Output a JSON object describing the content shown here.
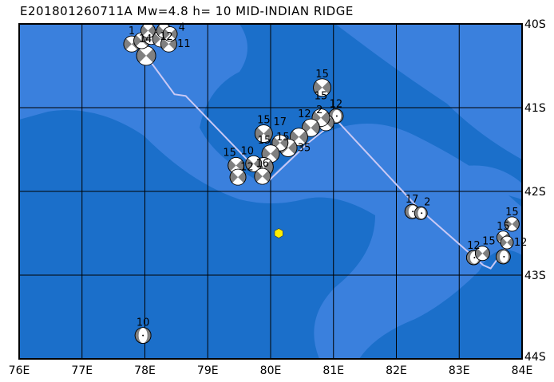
{
  "title": "E201801260711A Mw=4.8 h= 10 MID-INDIAN RIDGE",
  "map": {
    "lon_range": [
      76,
      84
    ],
    "lat_range_south": [
      40,
      44
    ],
    "lon_ticks": [
      "76E",
      "77E",
      "78E",
      "79E",
      "80E",
      "81E",
      "82E",
      "83E",
      "84E"
    ],
    "lat_ticks": [
      "40S",
      "41S",
      "42S",
      "43S",
      "44S"
    ],
    "colors": {
      "deep_ocean": "#1b6fca",
      "shallow_ocean": "#3a80dd",
      "ridge_line": "#c9c9f5",
      "compression": "#808080",
      "dilatation": "#ffffff",
      "epicenter": "#ffee00"
    },
    "epicenter": {
      "lon": 80.13,
      "lat": -42.5,
      "icon": "hexagon"
    },
    "ridge": [
      [
        78.02,
        -40.38
      ],
      [
        78.47,
        -40.84
      ],
      [
        78.65,
        -40.86
      ],
      [
        79.96,
        -41.88
      ],
      [
        80.6,
        -41.42
      ],
      [
        81.05,
        -41.15
      ],
      [
        82.35,
        -42.2
      ],
      [
        83.38,
        -42.88
      ],
      [
        83.5,
        -42.92
      ],
      [
        83.83,
        -42.58
      ]
    ],
    "events": [
      {
        "lon": 78.02,
        "lat": -40.38,
        "label": "",
        "type": "strike-slip",
        "size": 12
      },
      {
        "lon": 77.79,
        "lat": -40.24,
        "label": "1",
        "type": "strike-slip",
        "size": 10
      },
      {
        "lon": 77.95,
        "lat": -40.2,
        "label": "",
        "type": "strike-slip",
        "size": 10
      },
      {
        "lon": 78.1,
        "lat": -40.15,
        "label": "12",
        "type": "strike-slip",
        "size": 10
      },
      {
        "lon": 78.25,
        "lat": -40.18,
        "label": "14",
        "type": "strike-slip",
        "size": 10
      },
      {
        "lon": 78.38,
        "lat": -40.24,
        "label": "11",
        "type": "strike-slip",
        "size": 10
      },
      {
        "lon": 78.05,
        "lat": -40.08,
        "label": "",
        "type": "strike-slip",
        "size": 9
      },
      {
        "lon": 78.3,
        "lat": -40.08,
        "label": "4",
        "type": "strike-slip",
        "size": 9
      },
      {
        "lon": 78.4,
        "lat": -40.12,
        "label": "",
        "type": "strike-slip",
        "size": 9
      },
      {
        "lon": 80.82,
        "lat": -40.76,
        "label": "15",
        "type": "strike-slip",
        "size": 11
      },
      {
        "lon": 81.04,
        "lat": -41.1,
        "label": "12",
        "type": "normal",
        "size": 9
      },
      {
        "lon": 80.88,
        "lat": -41.18,
        "label": "2",
        "type": "strike-slip",
        "size": 10
      },
      {
        "lon": 80.8,
        "lat": -41.12,
        "label": "15",
        "type": "strike-slip",
        "size": 11
      },
      {
        "lon": 80.64,
        "lat": -41.24,
        "label": "12",
        "type": "strike-slip",
        "size": 11
      },
      {
        "lon": 80.45,
        "lat": -41.35,
        "label": "15",
        "type": "strike-slip",
        "size": 11
      },
      {
        "lon": 80.28,
        "lat": -41.48,
        "label": "35",
        "type": "strike-slip",
        "size": 11
      },
      {
        "lon": 80.15,
        "lat": -41.42,
        "label": "17",
        "type": "strike-slip",
        "size": 10
      },
      {
        "lon": 79.89,
        "lat": -41.31,
        "label": "15",
        "type": "strike-slip",
        "size": 11
      },
      {
        "lon": 80.0,
        "lat": -41.55,
        "label": "15",
        "type": "strike-slip",
        "size": 11
      },
      {
        "lon": 79.89,
        "lat": -41.71,
        "label": "12",
        "type": "strike-slip",
        "size": 12
      },
      {
        "lon": 79.73,
        "lat": -41.67,
        "label": "10",
        "type": "strike-slip",
        "size": 10
      },
      {
        "lon": 79.45,
        "lat": -41.69,
        "label": "15",
        "type": "strike-slip",
        "size": 10
      },
      {
        "lon": 79.48,
        "lat": -41.83,
        "label": "",
        "type": "strike-slip",
        "size": 10
      },
      {
        "lon": 79.87,
        "lat": -41.82,
        "label": "16",
        "type": "strike-slip",
        "size": 10
      },
      {
        "lon": 82.25,
        "lat": -42.24,
        "label": "17",
        "type": "normal",
        "size": 9
      },
      {
        "lon": 82.39,
        "lat": -42.26,
        "label": "2",
        "type": "normal",
        "size": 8
      },
      {
        "lon": 83.23,
        "lat": -42.79,
        "label": "12",
        "type": "normal",
        "size": 9
      },
      {
        "lon": 83.37,
        "lat": -42.74,
        "label": "15",
        "type": "strike-slip",
        "size": 9
      },
      {
        "lon": 83.84,
        "lat": -42.39,
        "label": "15",
        "type": "strike-slip",
        "size": 9
      },
      {
        "lon": 83.7,
        "lat": -42.55,
        "label": "15",
        "type": "strike-slip",
        "size": 8
      },
      {
        "lon": 83.76,
        "lat": -42.61,
        "label": "12",
        "type": "strike-slip",
        "size": 8
      },
      {
        "lon": 83.7,
        "lat": -42.78,
        "label": "",
        "type": "normal",
        "size": 9
      },
      {
        "lon": 77.97,
        "lat": -43.72,
        "label": "10",
        "type": "normal-narrow",
        "size": 10
      }
    ]
  }
}
